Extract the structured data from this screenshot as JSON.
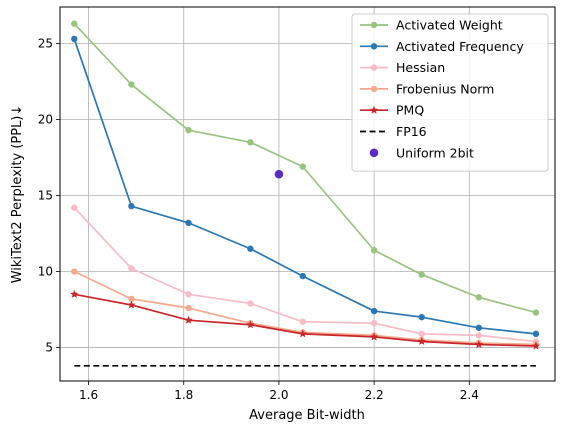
{
  "chart_data": {
    "type": "line",
    "title": "",
    "xlabel": "Average Bit-width",
    "ylabel": "WikiText2 Perplexity (PPL)↓",
    "xlim": [
      1.54,
      2.58
    ],
    "ylim": [
      2.8,
      27.4
    ],
    "xticks": [
      1.6,
      1.8,
      2.0,
      2.2,
      2.4
    ],
    "xtick_labels": [
      "1.6",
      "1.8",
      "2.0",
      "2.2",
      "2.4"
    ],
    "yticks": [
      5,
      10,
      15,
      20,
      25
    ],
    "ytick_labels": [
      "5",
      "10",
      "15",
      "20",
      "25"
    ],
    "grid": true,
    "legend_position": "top-right",
    "series": [
      {
        "name": "Activated Weight",
        "color": "#98c47f",
        "marker": "circle",
        "x": [
          1.57,
          1.69,
          1.81,
          1.94,
          2.05,
          2.2,
          2.3,
          2.42,
          2.54
        ],
        "y": [
          26.3,
          22.3,
          19.3,
          18.5,
          16.9,
          11.4,
          9.8,
          8.3,
          7.3
        ]
      },
      {
        "name": "Activated Frequency",
        "color": "#2a77b4",
        "marker": "circle",
        "x": [
          1.57,
          1.69,
          1.81,
          1.94,
          2.05,
          2.2,
          2.3,
          2.42,
          2.54
        ],
        "y": [
          25.3,
          14.3,
          13.2,
          11.5,
          9.7,
          7.4,
          7.0,
          6.3,
          5.9
        ]
      },
      {
        "name": "Hessian",
        "color": "#f8bcc8",
        "marker": "circle",
        "x": [
          1.57,
          1.69,
          1.81,
          1.94,
          2.05,
          2.2,
          2.3,
          2.42,
          2.54
        ],
        "y": [
          14.2,
          10.2,
          8.5,
          7.9,
          6.7,
          6.6,
          5.9,
          5.8,
          5.4
        ]
      },
      {
        "name": "Frobenius Norm",
        "color": "#f5a98c",
        "marker": "circle",
        "x": [
          1.57,
          1.69,
          1.81,
          1.94,
          2.05,
          2.2,
          2.3,
          2.42,
          2.54
        ],
        "y": [
          10.0,
          8.2,
          7.6,
          6.6,
          6.0,
          5.8,
          5.5,
          5.3,
          5.2
        ]
      },
      {
        "name": "PMQ",
        "color": "#c8262a",
        "marker": "star",
        "x": [
          1.57,
          1.69,
          1.81,
          1.94,
          2.05,
          2.2,
          2.3,
          2.42,
          2.54
        ],
        "y": [
          8.5,
          7.8,
          6.8,
          6.5,
          5.9,
          5.7,
          5.4,
          5.2,
          5.1
        ]
      },
      {
        "name": "FP16",
        "color": "#000000",
        "marker": "none",
        "dashed": true,
        "x": [
          1.57,
          2.54
        ],
        "y": [
          3.8,
          3.8
        ]
      },
      {
        "name": "Uniform 2bit",
        "color": "#5b2bc6",
        "marker": "dot",
        "scatter": true,
        "x": [
          2.0
        ],
        "y": [
          16.4
        ]
      }
    ]
  }
}
